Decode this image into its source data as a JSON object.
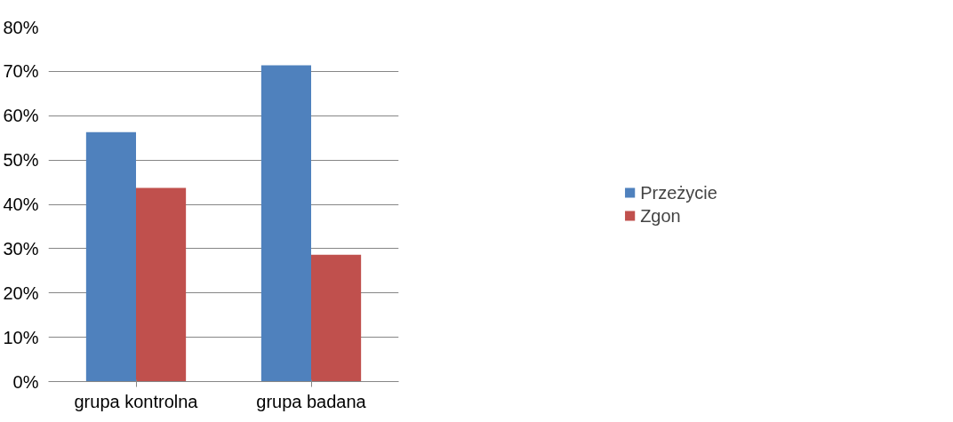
{
  "chart_data": {
    "type": "bar",
    "categories": [
      "grupa kontrolna",
      "grupa badana"
    ],
    "series": [
      {
        "name": "Przeżycie",
        "color": "#4f81bd",
        "values": [
          56.3,
          71.4
        ]
      },
      {
        "name": "Zgon",
        "color": "#c0504d",
        "values": [
          43.7,
          28.6
        ]
      }
    ],
    "ylim": [
      0,
      80
    ],
    "yticks": [
      {
        "value": 0,
        "label": "0%"
      },
      {
        "value": 10,
        "label": "10%"
      },
      {
        "value": 20,
        "label": "20%"
      },
      {
        "value": 30,
        "label": "30%"
      },
      {
        "value": 40,
        "label": "40%"
      },
      {
        "value": 50,
        "label": "50%"
      },
      {
        "value": 60,
        "label": "60%"
      },
      {
        "value": 70,
        "label": "70%"
      },
      {
        "value": 80,
        "label": "80%"
      }
    ],
    "grid": "y",
    "legend": "right"
  }
}
